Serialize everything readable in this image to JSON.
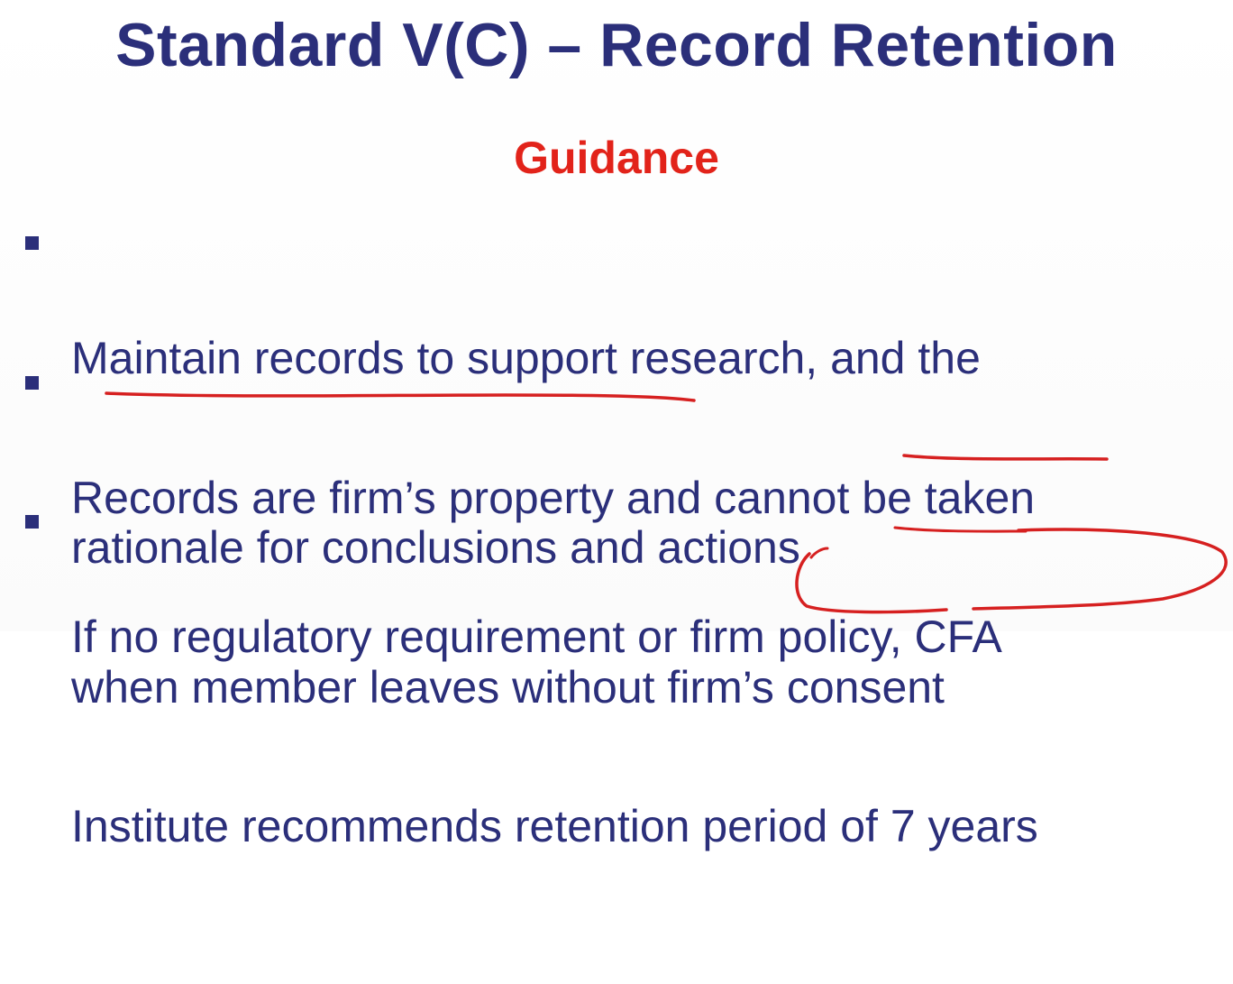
{
  "slide": {
    "title": "Standard V(C) – Record Retention",
    "subtitle": "Guidance",
    "bullets": [
      {
        "lines": [
          "Maintain records to support research, and the",
          "rationale for conclusions and actions"
        ]
      },
      {
        "lines": [
          "Records are firm’s property and cannot be taken",
          "when member leaves without firm’s consent"
        ]
      },
      {
        "lines": [
          "If no regulatory requirement or firm policy, CFA",
          "Institute recommends retention period of 7 years"
        ]
      }
    ]
  },
  "colors": {
    "title": "#2b2f7a",
    "subtitle": "#e2231a",
    "body": "#2b2f7a",
    "annotation": "#d62020"
  }
}
